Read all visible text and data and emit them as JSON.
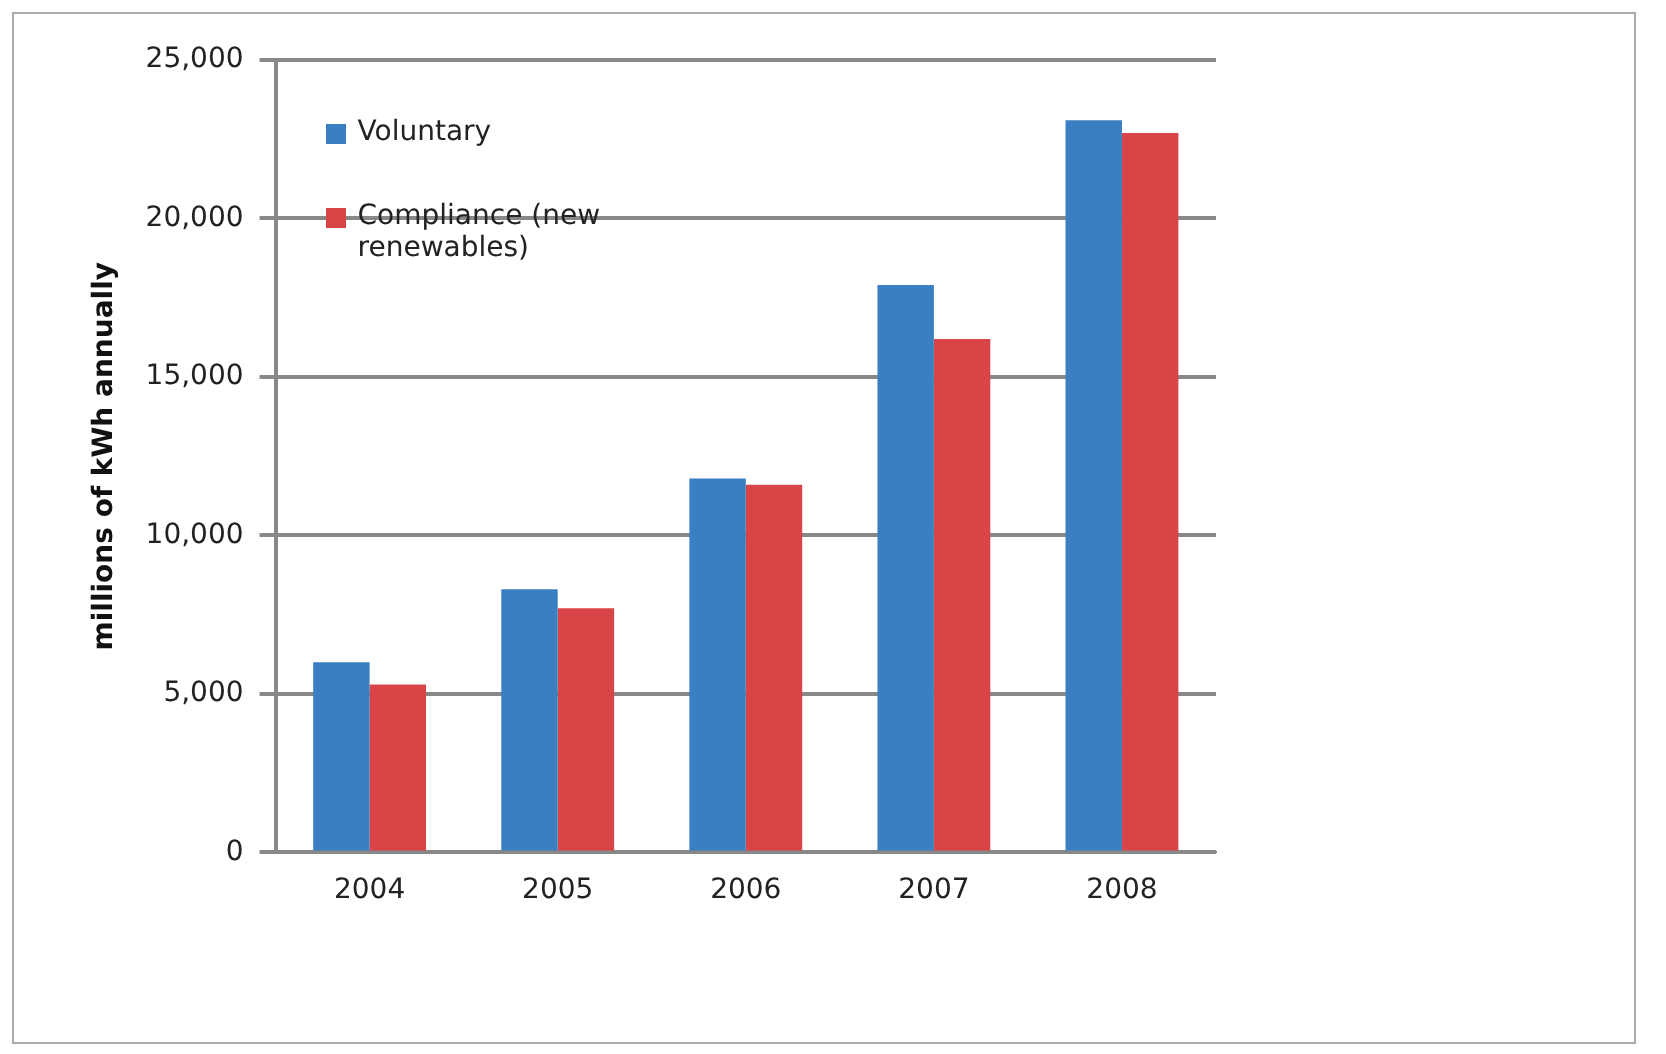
{
  "chart_data": {
    "type": "bar",
    "ylabel": "millions of kWh annually",
    "categories": [
      "2004",
      "2005",
      "2006",
      "2007",
      "2008"
    ],
    "series": [
      {
        "name": "Voluntary",
        "color": "#3a7fc1",
        "values": [
          6000,
          8300,
          11800,
          17900,
          23100
        ]
      },
      {
        "name": "Compliance (new renewables)",
        "color": "#d94547",
        "values": [
          5300,
          7700,
          11600,
          16200,
          22700
        ]
      }
    ],
    "ylim": [
      0,
      25000
    ],
    "yticks": [
      0,
      {
        "value": 5000,
        "label": "5,000"
      },
      {
        "value": 10000,
        "label": "10,000"
      },
      {
        "value": 15000,
        "label": "15,000"
      },
      {
        "value": 20000,
        "label": "20,000"
      },
      {
        "value": 25000,
        "label": "25,000"
      }
    ],
    "grid": "y",
    "legend": "top left"
  }
}
